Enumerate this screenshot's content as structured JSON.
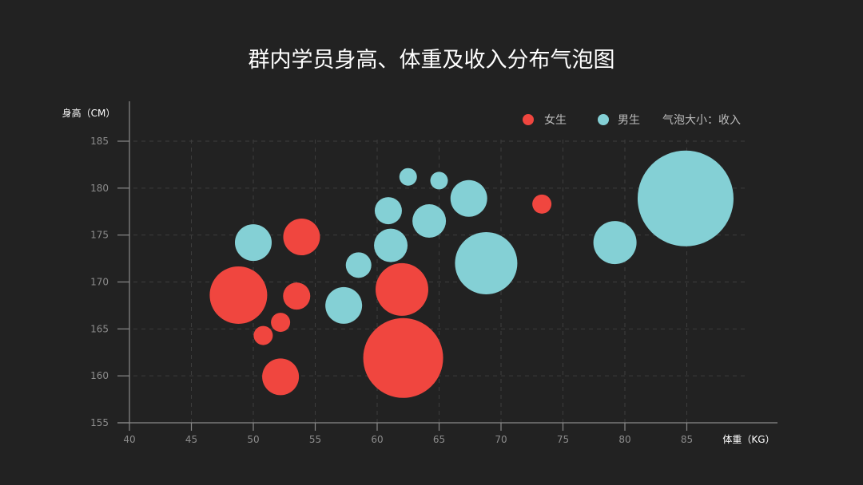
{
  "chart_data": {
    "type": "scatter",
    "title": "群内学员身高、体重及收入分布气泡图",
    "xlabel": "体重（KG）",
    "ylabel": "身高（CM）",
    "xlim": [
      40,
      90
    ],
    "ylim": [
      155,
      185
    ],
    "xticks": [
      40,
      45,
      50,
      55,
      60,
      65,
      70,
      75,
      80,
      85
    ],
    "yticks": [
      155,
      160,
      165,
      170,
      175,
      180,
      185
    ],
    "grid": true,
    "legend_position": "top-right",
    "size_note": "气泡大小：收入",
    "series": [
      {
        "name": "女生",
        "color": "#f0463f",
        "points": [
          {
            "x": 48.8,
            "y": 168.6,
            "r": 36
          },
          {
            "x": 50.8,
            "y": 164.3,
            "r": 12
          },
          {
            "x": 52.2,
            "y": 165.7,
            "r": 12
          },
          {
            "x": 52.2,
            "y": 159.9,
            "r": 23
          },
          {
            "x": 53.5,
            "y": 168.5,
            "r": 17
          },
          {
            "x": 53.9,
            "y": 174.8,
            "r": 23
          },
          {
            "x": 62.0,
            "y": 169.2,
            "r": 33
          },
          {
            "x": 62.1,
            "y": 161.9,
            "r": 50
          },
          {
            "x": 73.3,
            "y": 178.3,
            "r": 12
          }
        ]
      },
      {
        "name": "男生",
        "color": "#84d0d5",
        "points": [
          {
            "x": 50.0,
            "y": 174.2,
            "r": 23
          },
          {
            "x": 57.3,
            "y": 167.5,
            "r": 23
          },
          {
            "x": 58.5,
            "y": 171.8,
            "r": 16
          },
          {
            "x": 60.9,
            "y": 177.6,
            "r": 17
          },
          {
            "x": 61.1,
            "y": 173.9,
            "r": 21
          },
          {
            "x": 62.5,
            "y": 181.2,
            "r": 11
          },
          {
            "x": 64.2,
            "y": 176.5,
            "r": 21
          },
          {
            "x": 65.0,
            "y": 180.8,
            "r": 11
          },
          {
            "x": 67.4,
            "y": 178.9,
            "r": 23
          },
          {
            "x": 68.8,
            "y": 172.0,
            "r": 39
          },
          {
            "x": 79.2,
            "y": 174.2,
            "r": 27
          },
          {
            "x": 84.9,
            "y": 178.9,
            "r": 60
          }
        ]
      }
    ]
  }
}
